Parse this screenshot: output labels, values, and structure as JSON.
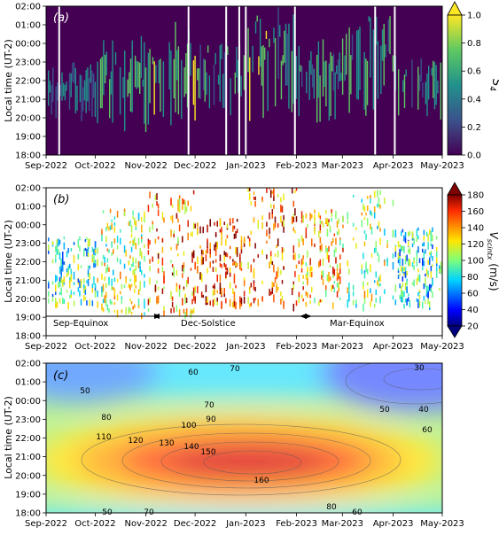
{
  "figure": {
    "panels": [
      {
        "id": "a",
        "label": "(a)",
        "ylabel": "Local time (UT-2)",
        "colorbar_label": "S4",
        "colorbar_ticks": [
          "0.0",
          "0.2",
          "0.4",
          "0.6",
          "0.8",
          "1.0"
        ],
        "colormap": "viridis",
        "extend": "max",
        "background": "#440154"
      },
      {
        "id": "b",
        "label": "(b)",
        "ylabel": "Local time (UT-2)",
        "colorbar_label": "Vscintx (m/s)",
        "colorbar_ticks": [
          "20",
          "40",
          "60",
          "80",
          "100",
          "120",
          "140",
          "160",
          "180"
        ],
        "colormap": "jet",
        "extend": "both",
        "season_labels": [
          "Sep-Equinox",
          "Dec-Solstice",
          "Mar-Equinox"
        ]
      },
      {
        "id": "c",
        "label": "(c)",
        "ylabel": "Local time (UT-2)",
        "colormap": "jet-contour",
        "contour_labels": [
          "30",
          "40",
          "50",
          "50",
          "50",
          "60",
          "60",
          "60",
          "70",
          "70",
          "70",
          "80",
          "80",
          "90",
          "100",
          "110",
          "120",
          "130",
          "140",
          "150",
          "160"
        ]
      }
    ],
    "x_ticks": [
      "Sep-2022",
      "Oct-2022",
      "Nov-2022",
      "Dec-2022",
      "Jan-2023",
      "Feb-2023",
      "Mar-2023",
      "Apr-2023",
      "May-2023"
    ],
    "y_ticks_top": [
      "02:00",
      "01:00",
      "00:00",
      "23:00",
      "22:00",
      "21:00",
      "20:00",
      "19:00",
      "18:00"
    ]
  },
  "chart_data": [
    {
      "type": "heatmap",
      "panel": "a",
      "x": [
        "2022-09-01",
        "2023-05-01"
      ],
      "y_range": [
        "18:00",
        "02:00"
      ],
      "z_label": "S4",
      "z_range": [
        0.0,
        1.0
      ],
      "gap_dates": [
        "2022-09-09",
        "2022-11-27",
        "2022-12-20",
        "2022-12-28",
        "2023-01-01",
        "2023-01-31",
        "2023-03-21",
        "2023-04-02"
      ],
      "activity_profile": [
        {
          "month": "Sep-2022",
          "start": "20:00",
          "end": "23:00",
          "level": 0.4
        },
        {
          "month": "Oct-2022",
          "start": "19:30",
          "end": "00:30",
          "level": 0.6
        },
        {
          "month": "Nov-2022",
          "start": "19:30",
          "end": "01:30",
          "level": 0.65
        },
        {
          "month": "Dec-2022",
          "start": "20:00",
          "end": "00:00",
          "level": 0.5
        },
        {
          "month": "Jan-2023",
          "start": "20:00",
          "end": "02:00",
          "level": 0.6
        },
        {
          "month": "Feb-2023",
          "start": "20:00",
          "end": "00:30",
          "level": 0.5
        },
        {
          "month": "Mar-2023",
          "start": "20:00",
          "end": "01:30",
          "level": 0.55
        },
        {
          "month": "Apr-2023",
          "start": "20:00",
          "end": "23:30",
          "level": 0.5
        }
      ]
    },
    {
      "type": "scatter",
      "panel": "b",
      "z_label": "Vscintx (m/s)",
      "z_range": [
        20,
        180
      ],
      "season_boundaries": [
        "2022-11-05",
        "2023-02-05"
      ],
      "velocity_profile": [
        {
          "month": "Sep-2022",
          "typical_speed": 90
        },
        {
          "month": "Oct-2022",
          "typical_speed": 110
        },
        {
          "month": "Nov-2022",
          "typical_speed": 140
        },
        {
          "month": "Dec-2022",
          "typical_speed": 155
        },
        {
          "month": "Jan-2023",
          "typical_speed": 150
        },
        {
          "month": "Feb-2023",
          "typical_speed": 130
        },
        {
          "month": "Mar-2023",
          "typical_speed": 105
        },
        {
          "month": "Apr-2023",
          "typical_speed": 85
        }
      ]
    },
    {
      "type": "heatmap",
      "panel": "c",
      "subtype": "filled-contour",
      "z_label": "Vscintx (m/s)",
      "z_max": 160,
      "z_max_at": {
        "date": "2022-12-25",
        "time": "20:30"
      },
      "contour_levels": [
        30,
        40,
        50,
        60,
        70,
        80,
        90,
        100,
        110,
        120,
        130,
        140,
        150,
        160
      ]
    }
  ]
}
